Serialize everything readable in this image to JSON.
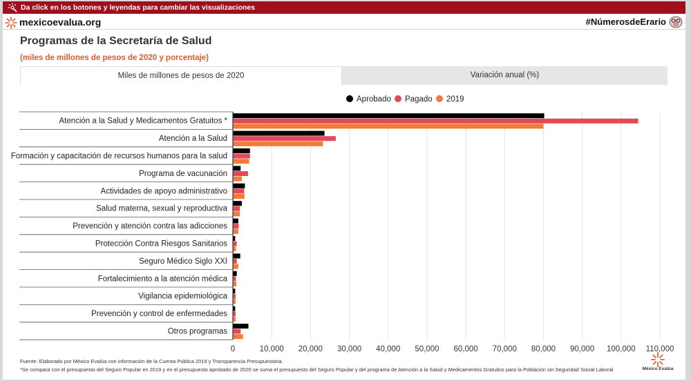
{
  "banner": {
    "hint": "Da click en los botones y leyendas para cambiar las visualizaciones"
  },
  "brand": {
    "name": "mexicoevalua.org",
    "hashtag": "#NúmerosdeErario",
    "footer_name": "México Evalúa"
  },
  "header": {
    "title": "Programas de la Secretaría de Salud",
    "subtitle": "(miles de millones de pesos de 2020 y porcentaje)"
  },
  "tabs": [
    {
      "label": "Miles de millones de pesos de 2020",
      "active": true
    },
    {
      "label": "Variación anual (%)",
      "active": false
    }
  ],
  "icons": {
    "hint": "hand-pointer-icon",
    "brand": "star-burst-logo-icon",
    "mascot": "pig-mascot-icon"
  },
  "colors": {
    "accent": "#a30e1c",
    "subtitle": "#e25a2b"
  },
  "chart_data": {
    "type": "bar",
    "orientation": "horizontal",
    "categories": [
      "Atención a la Salud y Medicamentos Gratuitos *",
      "Atención a la Salud",
      "Formación y capacitación de recursos humanos para la salud",
      "Programa de vacunación",
      "Actividades de apoyo administrativo",
      "Salud materna, sexual y reproductiva",
      "Prevención y atención contra las adicciones",
      "Protección Contra Riesgos Sanitarios",
      "Seguro Médico Siglo XXI",
      "Fortalecimiento a la atención médica",
      "Vigilancia epidemiológica",
      "Prevención y control de enfermedades",
      "Otros programas"
    ],
    "series": [
      {
        "name": "Aprobado",
        "color": "#000000",
        "values": [
          80200,
          23600,
          4400,
          2000,
          3100,
          2300,
          1400,
          600,
          1900,
          1000,
          600,
          600,
          4000
        ]
      },
      {
        "name": "Pagado",
        "color": "#e04b57",
        "values": [
          104400,
          26500,
          4400,
          3900,
          2900,
          1800,
          1500,
          1000,
          1000,
          800,
          700,
          700,
          2000
        ]
      },
      {
        "name": "2019",
        "color": "#f07b3a",
        "values": [
          80000,
          23200,
          4200,
          2300,
          3000,
          1800,
          1400,
          800,
          1400,
          900,
          700,
          700,
          2600
        ]
      }
    ],
    "xlim": [
      0,
      110000
    ],
    "xticks": [
      0,
      10000,
      20000,
      30000,
      40000,
      50000,
      60000,
      70000,
      80000,
      90000,
      100000,
      110000
    ],
    "xtick_labels": [
      "0",
      "10,000",
      "20,000",
      "30,000",
      "40,000",
      "50,000",
      "60,000",
      "70,000",
      "80,000",
      "90,000",
      "100,000",
      "110,000"
    ],
    "grid": true,
    "legend_position": "top-center"
  },
  "footnotes": {
    "source": "Fuente: Elaborado por México Evalúa con información de la Cuenta Pública 2019 y Transparencia Presupuestaria.",
    "note": "*Se compara con el presupuesto del Seguro Popular en 2019 y en el presupuesto aprobado de 2020 se suma el presupuesto del Seguro Popular y del programa de Atención a la Salud y Medicamentos Gratuitos para la Población sin Seguridad Social Laboral"
  }
}
